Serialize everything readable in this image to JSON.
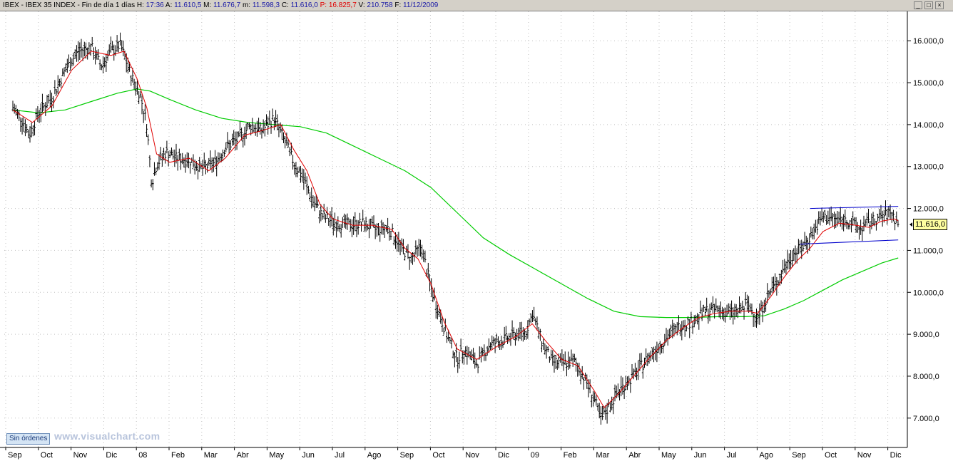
{
  "header": {
    "symbol": "IBEX",
    "name": "IBEX 35 INDEX",
    "period": "Fin de día 1 días",
    "items": [
      {
        "label": "H:",
        "value": "17:36"
      },
      {
        "label": "A:",
        "value": "11.610,5"
      },
      {
        "label": "M:",
        "value": "11.676,7"
      },
      {
        "label": "m:",
        "value": "11.598,3"
      },
      {
        "label": "C:",
        "value": "11.616,0"
      },
      {
        "label": "P:",
        "value": "16.825,7",
        "color": "#e00000"
      },
      {
        "label": "V:",
        "value": "210.758"
      },
      {
        "label": "F:",
        "value": "11/12/2009"
      }
    ],
    "window_buttons": [
      "_",
      "□",
      "×"
    ]
  },
  "footer": {
    "orders_button": "Sin órdenes",
    "watermark": "www.visualchart.com"
  },
  "last_price_tag": "11.616,0",
  "chart_data": {
    "type": "line",
    "title": "",
    "ylim": [
      6300,
      16700
    ],
    "y_ticks": [
      7000,
      8000,
      9000,
      10000,
      11000,
      12000,
      13000,
      14000,
      15000,
      16000
    ],
    "y_tick_labels": [
      "7.000,0",
      "8.000,0",
      "9.000,0",
      "10.000,0",
      "11.000,0",
      "12.000,0",
      "13.000,0",
      "14.000,0",
      "15.000,0",
      "16.000,0"
    ],
    "x_months": [
      "Sep",
      "Oct",
      "Nov",
      "Dic",
      "08",
      "Feb",
      "Mar",
      "Abr",
      "May",
      "Jun",
      "Jul",
      "Ago",
      "Sep",
      "Oct",
      "Nov",
      "Dic",
      "09",
      "Feb",
      "Mar",
      "Abr",
      "May",
      "Jun",
      "Jul",
      "Ago",
      "Sep",
      "Oct",
      "Nov",
      "Dic"
    ],
    "grid": true,
    "colors": {
      "price": "#000000",
      "ma_short": "#e00000",
      "ma_long": "#00cc00",
      "channel": "#0000cc",
      "grid": "#c0c0c0"
    },
    "series": [
      {
        "key": "price",
        "style": "ohlc-bars",
        "points": [
          [
            0,
            14400
          ],
          [
            0.3,
            14100
          ],
          [
            0.5,
            13750
          ],
          [
            0.8,
            14300
          ],
          [
            1.2,
            14650
          ],
          [
            1.6,
            15300
          ],
          [
            2.0,
            15750
          ],
          [
            2.4,
            15850
          ],
          [
            2.7,
            15400
          ],
          [
            3.0,
            15750
          ],
          [
            3.3,
            15900
          ],
          [
            3.6,
            15200
          ],
          [
            3.9,
            14700
          ],
          [
            4.1,
            14000
          ],
          [
            4.25,
            12600
          ],
          [
            4.4,
            13050
          ],
          [
            4.7,
            13350
          ],
          [
            5.0,
            13200
          ],
          [
            5.4,
            13150
          ],
          [
            5.8,
            12950
          ],
          [
            6.2,
            13100
          ],
          [
            6.5,
            13450
          ],
          [
            6.9,
            13650
          ],
          [
            7.3,
            14000
          ],
          [
            7.6,
            13850
          ],
          [
            8.0,
            14150
          ],
          [
            8.3,
            13650
          ],
          [
            8.6,
            13100
          ],
          [
            8.9,
            12700
          ],
          [
            9.2,
            12150
          ],
          [
            9.5,
            11800
          ],
          [
            9.9,
            11650
          ],
          [
            10.3,
            11600
          ],
          [
            10.7,
            11650
          ],
          [
            11.1,
            11500
          ],
          [
            11.5,
            11550
          ],
          [
            11.9,
            11050
          ],
          [
            12.2,
            10800
          ],
          [
            12.5,
            11100
          ],
          [
            12.8,
            10100
          ],
          [
            13.0,
            9600
          ],
          [
            13.3,
            8950
          ],
          [
            13.6,
            8400
          ],
          [
            13.8,
            8650
          ],
          [
            14.2,
            8300
          ],
          [
            14.6,
            8750
          ],
          [
            15.0,
            8850
          ],
          [
            15.4,
            9000
          ],
          [
            15.7,
            9050
          ],
          [
            15.9,
            9500
          ],
          [
            16.2,
            8800
          ],
          [
            16.5,
            8350
          ],
          [
            16.8,
            8300
          ],
          [
            17.2,
            8350
          ],
          [
            17.5,
            7950
          ],
          [
            17.8,
            7450
          ],
          [
            18.0,
            6950
          ],
          [
            18.3,
            7350
          ],
          [
            18.6,
            7700
          ],
          [
            19.0,
            8000
          ],
          [
            19.4,
            8400
          ],
          [
            19.8,
            8750
          ],
          [
            20.2,
            9050
          ],
          [
            20.5,
            9250
          ],
          [
            20.8,
            9300
          ],
          [
            21.2,
            9550
          ],
          [
            21.6,
            9600
          ],
          [
            21.9,
            9500
          ],
          [
            22.2,
            9550
          ],
          [
            22.5,
            9700
          ],
          [
            22.8,
            9400
          ],
          [
            23.1,
            9900
          ],
          [
            23.5,
            10400
          ],
          [
            23.8,
            10850
          ],
          [
            24.2,
            11100
          ],
          [
            24.5,
            11450
          ],
          [
            24.8,
            11800
          ],
          [
            25.2,
            11750
          ],
          [
            25.6,
            11700
          ],
          [
            25.9,
            11500
          ],
          [
            26.2,
            11650
          ],
          [
            26.6,
            11800
          ],
          [
            26.9,
            11900
          ],
          [
            27.1,
            11616
          ]
        ]
      },
      {
        "key": "ma_short",
        "name": "",
        "points": [
          [
            0,
            14350
          ],
          [
            0.6,
            14050
          ],
          [
            1.2,
            14450
          ],
          [
            1.8,
            15300
          ],
          [
            2.4,
            15750
          ],
          [
            3.0,
            15650
          ],
          [
            3.4,
            15750
          ],
          [
            3.8,
            15100
          ],
          [
            4.1,
            14400
          ],
          [
            4.4,
            13300
          ],
          [
            4.8,
            13100
          ],
          [
            5.4,
            13200
          ],
          [
            6.0,
            12900
          ],
          [
            6.5,
            13200
          ],
          [
            7.1,
            13750
          ],
          [
            7.6,
            13850
          ],
          [
            8.2,
            14000
          ],
          [
            8.6,
            13400
          ],
          [
            9.0,
            12900
          ],
          [
            9.4,
            12100
          ],
          [
            9.8,
            11750
          ],
          [
            10.4,
            11600
          ],
          [
            11.0,
            11600
          ],
          [
            11.6,
            11500
          ],
          [
            12.0,
            11050
          ],
          [
            12.4,
            10800
          ],
          [
            12.8,
            10200
          ],
          [
            13.2,
            9300
          ],
          [
            13.6,
            8650
          ],
          [
            14.2,
            8400
          ],
          [
            14.8,
            8700
          ],
          [
            15.4,
            8950
          ],
          [
            15.9,
            9250
          ],
          [
            16.3,
            8850
          ],
          [
            16.8,
            8400
          ],
          [
            17.3,
            8250
          ],
          [
            17.8,
            7650
          ],
          [
            18.1,
            7250
          ],
          [
            18.5,
            7550
          ],
          [
            19.0,
            8000
          ],
          [
            19.5,
            8450
          ],
          [
            20.0,
            8850
          ],
          [
            20.5,
            9150
          ],
          [
            21.0,
            9400
          ],
          [
            21.5,
            9500
          ],
          [
            22.0,
            9550
          ],
          [
            22.5,
            9550
          ],
          [
            22.8,
            9500
          ],
          [
            23.2,
            9900
          ],
          [
            23.6,
            10350
          ],
          [
            24.0,
            10750
          ],
          [
            24.4,
            11050
          ],
          [
            24.8,
            11450
          ],
          [
            25.3,
            11650
          ],
          [
            25.8,
            11600
          ],
          [
            26.2,
            11550
          ],
          [
            26.6,
            11700
          ],
          [
            27.0,
            11750
          ],
          [
            27.1,
            11700
          ]
        ]
      },
      {
        "key": "ma_long",
        "name": "",
        "points": [
          [
            0,
            14350
          ],
          [
            0.8,
            14280
          ],
          [
            1.6,
            14350
          ],
          [
            2.4,
            14550
          ],
          [
            3.2,
            14750
          ],
          [
            3.8,
            14850
          ],
          [
            4.2,
            14800
          ],
          [
            4.8,
            14600
          ],
          [
            5.6,
            14350
          ],
          [
            6.4,
            14150
          ],
          [
            7.2,
            14050
          ],
          [
            8.0,
            14000
          ],
          [
            8.8,
            13950
          ],
          [
            9.6,
            13800
          ],
          [
            10.4,
            13500
          ],
          [
            11.2,
            13200
          ],
          [
            12.0,
            12900
          ],
          [
            12.8,
            12500
          ],
          [
            13.6,
            11900
          ],
          [
            14.4,
            11300
          ],
          [
            15.2,
            10900
          ],
          [
            16.0,
            10550
          ],
          [
            16.8,
            10200
          ],
          [
            17.6,
            9850
          ],
          [
            18.4,
            9550
          ],
          [
            19.2,
            9420
          ],
          [
            20.0,
            9400
          ],
          [
            20.8,
            9400
          ],
          [
            21.6,
            9420
          ],
          [
            22.4,
            9420
          ],
          [
            23.0,
            9440
          ],
          [
            23.6,
            9600
          ],
          [
            24.2,
            9800
          ],
          [
            24.8,
            10050
          ],
          [
            25.4,
            10300
          ],
          [
            26.0,
            10500
          ],
          [
            26.6,
            10700
          ],
          [
            27.1,
            10820
          ]
        ]
      }
    ],
    "channel_lines": [
      {
        "x1": 24.4,
        "y1": 12000,
        "x2": 27.1,
        "y2": 12050
      },
      {
        "x1": 24.1,
        "y1": 11150,
        "x2": 27.1,
        "y2": 11250
      }
    ]
  }
}
